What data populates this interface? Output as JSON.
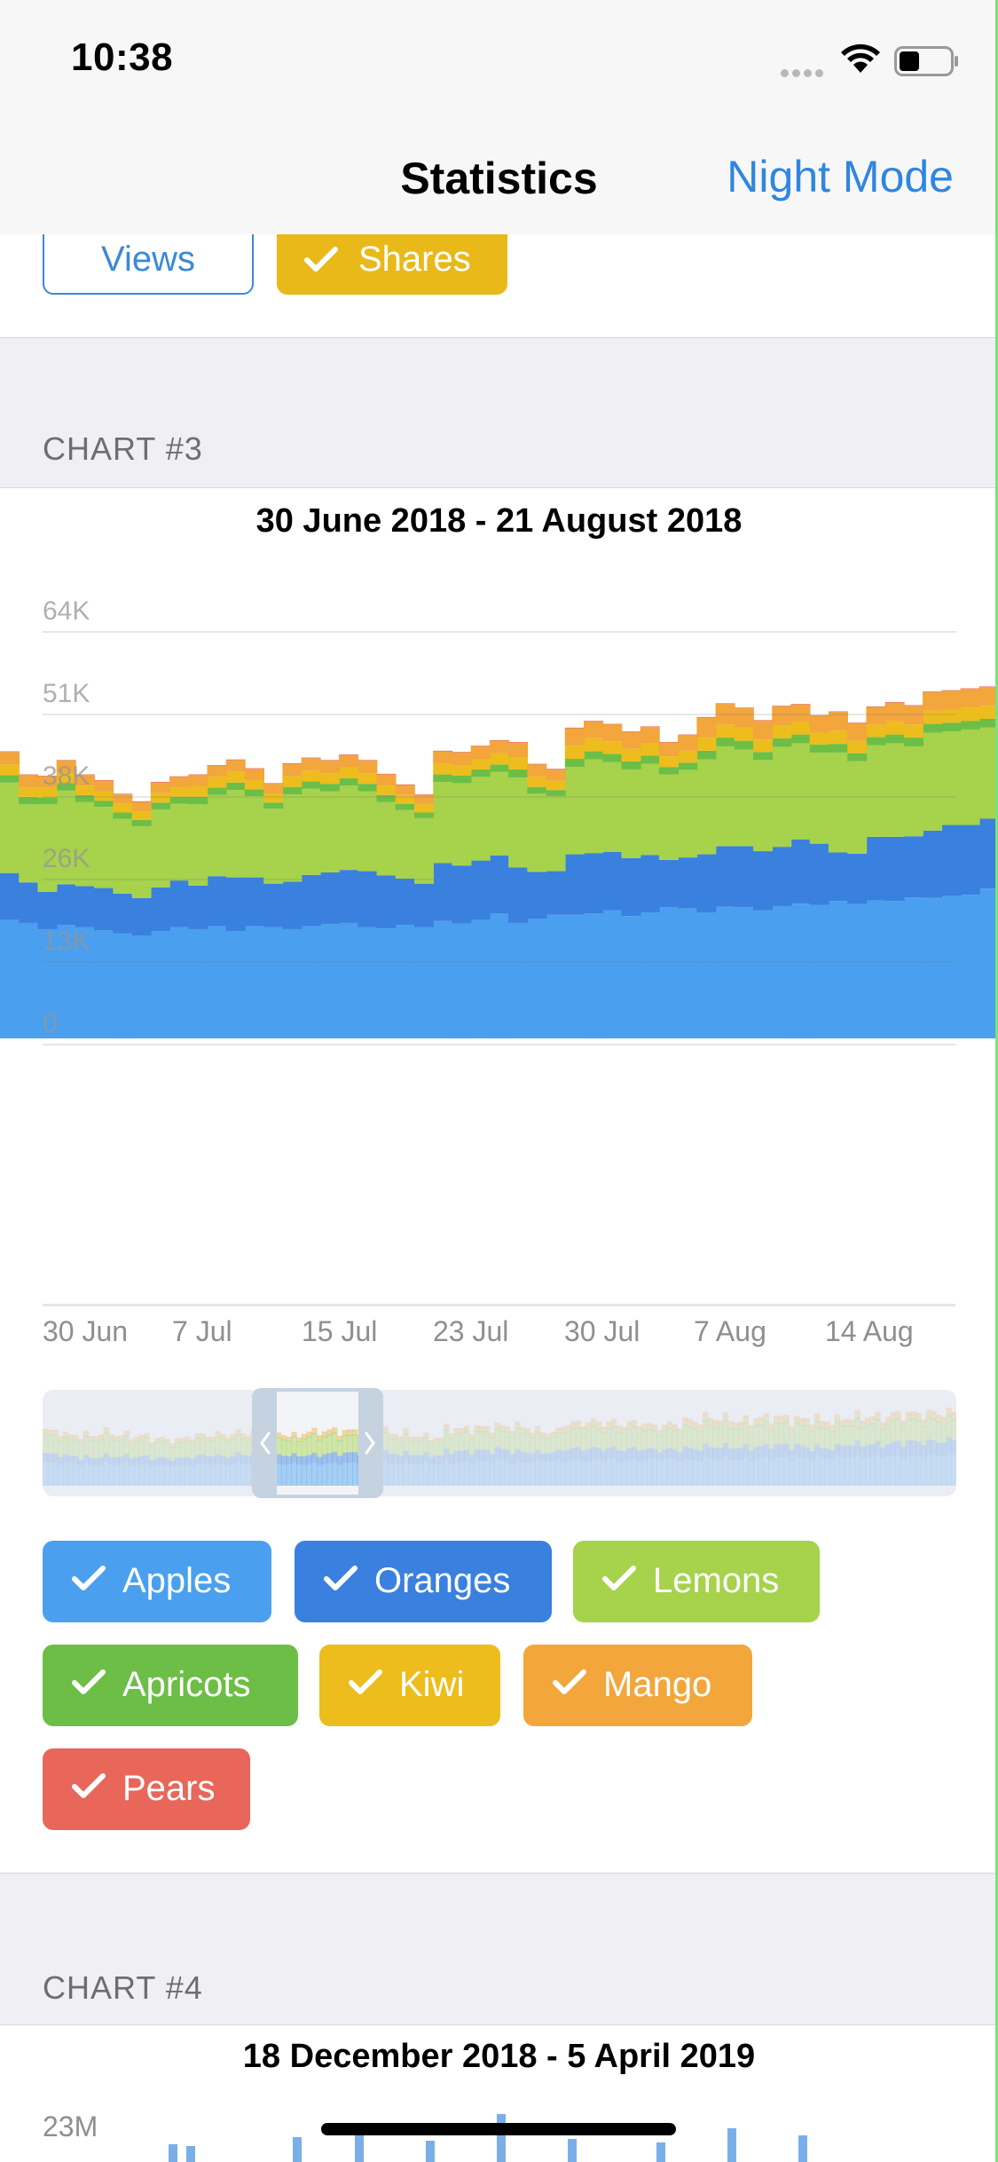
{
  "status": {
    "time": "10:38"
  },
  "nav": {
    "title": "Statistics",
    "action": "Night Mode"
  },
  "top_buttons": [
    {
      "label": "Views",
      "checked": false
    },
    {
      "label": "Shares",
      "checked": true,
      "color": "#e9b91a"
    }
  ],
  "chart3": {
    "section_label": "CHART #3",
    "range": "30 June 2018 - 21 August 2018",
    "yticks": [
      "64K",
      "51K",
      "38K",
      "26K",
      "13K",
      "0"
    ],
    "xticks": [
      "30 Jun",
      "7 Jul",
      "15 Jul",
      "23 Jul",
      "30 Jul",
      "7 Aug",
      "14 Aug"
    ],
    "chips": [
      {
        "label": "Apples",
        "color": "#4aa0ee"
      },
      {
        "label": "Oranges",
        "color": "#3a80de"
      },
      {
        "label": "Lemons",
        "color": "#a6d24c"
      },
      {
        "label": "Apricots",
        "color": "#6dbe46"
      },
      {
        "label": "Kiwi",
        "color": "#ecbd1c"
      },
      {
        "label": "Mango",
        "color": "#f2a63c"
      },
      {
        "label": "Pears",
        "color": "#e8675a"
      }
    ]
  },
  "chart_data": {
    "type": "area",
    "stacked": true,
    "title": "30 June 2018 - 21 August 2018",
    "x": [
      "2018-06-30",
      "2018-07-01",
      "2018-07-02",
      "2018-07-03",
      "2018-07-04",
      "2018-07-05",
      "2018-07-06",
      "2018-07-07",
      "2018-07-08",
      "2018-07-09",
      "2018-07-10",
      "2018-07-11",
      "2018-07-12",
      "2018-07-13",
      "2018-07-14",
      "2018-07-15",
      "2018-07-16",
      "2018-07-17",
      "2018-07-18",
      "2018-07-19",
      "2018-07-20",
      "2018-07-21",
      "2018-07-22",
      "2018-07-23",
      "2018-07-24",
      "2018-07-25",
      "2018-07-26",
      "2018-07-27",
      "2018-07-28",
      "2018-07-29",
      "2018-07-30",
      "2018-07-31",
      "2018-08-01",
      "2018-08-02",
      "2018-08-03",
      "2018-08-04",
      "2018-08-05",
      "2018-08-06",
      "2018-08-07",
      "2018-08-08",
      "2018-08-09",
      "2018-08-10",
      "2018-08-11",
      "2018-08-12",
      "2018-08-13",
      "2018-08-14",
      "2018-08-15",
      "2018-08-16",
      "2018-08-17",
      "2018-08-18",
      "2018-08-19",
      "2018-08-20",
      "2018-08-21"
    ],
    "series": [
      {
        "name": "Apples",
        "color": "#4aa0ee",
        "values": [
          19000,
          18500,
          17500,
          18200,
          17800,
          17300,
          16800,
          16500,
          17200,
          17800,
          17500,
          18000,
          17200,
          18000,
          17800,
          17500,
          18000,
          18300,
          18500,
          17800,
          17600,
          18200,
          17800,
          18800,
          18400,
          19000,
          20000,
          18500,
          19200,
          19800,
          19800,
          20000,
          20500,
          19600,
          20200,
          21000,
          20800,
          20200,
          21100,
          21000,
          20500,
          21200,
          21600,
          21400,
          22000,
          21500,
          22100,
          22000,
          22600,
          22500,
          22800,
          23000,
          24000
        ]
      },
      {
        "name": "Oranges",
        "color": "#3a80de",
        "values": [
          7500,
          6500,
          6000,
          6500,
          6600,
          6800,
          6400,
          6000,
          7000,
          7500,
          7000,
          8000,
          8600,
          7800,
          7000,
          7600,
          8200,
          8300,
          8500,
          9000,
          8500,
          7400,
          7000,
          9300,
          9300,
          9500,
          9300,
          8900,
          7500,
          7000,
          9700,
          9700,
          9400,
          9300,
          9200,
          7600,
          8200,
          9300,
          9700,
          9800,
          9500,
          9500,
          10300,
          9800,
          7800,
          8100,
          10200,
          10300,
          9800,
          10800,
          11400,
          11200,
          11200
        ]
      },
      {
        "name": "Lemons",
        "color": "#a6d24c",
        "values": [
          14500,
          12500,
          14000,
          15000,
          13500,
          13000,
          12000,
          11500,
          12500,
          12300,
          13000,
          13000,
          14000,
          13000,
          12000,
          14000,
          13800,
          13000,
          13500,
          12800,
          11800,
          11000,
          10500,
          13000,
          13200,
          13400,
          13400,
          14400,
          12500,
          12000,
          14000,
          15000,
          14400,
          14200,
          14600,
          13700,
          14000,
          15200,
          16000,
          15500,
          14600,
          16000,
          15400,
          14600,
          16000,
          14800,
          14700,
          15000,
          14400,
          15700,
          15000,
          15300,
          14600
        ]
      },
      {
        "name": "Apricots",
        "color": "#6dbe46",
        "values": [
          1200,
          1200,
          1100,
          1200,
          1100,
          1000,
          1000,
          1000,
          1100,
          1100,
          1200,
          1200,
          1200,
          1100,
          1000,
          1200,
          1200,
          1200,
          1200,
          1200,
          1100,
          1000,
          900,
          1200,
          1200,
          1200,
          1200,
          1300,
          1100,
          1000,
          1300,
          1300,
          1300,
          1300,
          1300,
          1200,
          1200,
          1400,
          1400,
          1400,
          1300,
          1400,
          1400,
          1300,
          1400,
          1300,
          1300,
          1400,
          1400,
          1400,
          1400,
          1400,
          1400
        ]
      },
      {
        "name": "Kiwi",
        "color": "#ecbd1c",
        "values": [
          1700,
          1500,
          1600,
          1700,
          1500,
          1500,
          1400,
          1400,
          1500,
          1500,
          1700,
          1700,
          1700,
          1500,
          1400,
          1700,
          1700,
          1700,
          1700,
          1700,
          1500,
          1400,
          1300,
          1700,
          1700,
          1700,
          1800,
          1900,
          1600,
          1500,
          2100,
          2100,
          2000,
          2000,
          2000,
          1700,
          1900,
          2100,
          2100,
          2100,
          2000,
          2100,
          2000,
          1900,
          2100,
          2000,
          2000,
          2100,
          2100,
          2100,
          2100,
          2100,
          2100
        ]
      },
      {
        "name": "Mango",
        "color": "#f2a63c",
        "values": [
          2000,
          2000,
          1800,
          1900,
          1700,
          1700,
          1500,
          1500,
          1700,
          1700,
          1800,
          1800,
          1900,
          1800,
          1600,
          2000,
          2000,
          2000,
          2000,
          2000,
          1800,
          1600,
          1500,
          2000,
          2000,
          2000,
          2000,
          2400,
          2000,
          1800,
          2800,
          2700,
          2700,
          2700,
          2600,
          2200,
          2500,
          3200,
          3300,
          3100,
          3000,
          3000,
          2800,
          2700,
          3000,
          2800,
          2800,
          3000,
          3000,
          3000,
          3000,
          3000,
          3000
        ]
      },
      {
        "name": "Pears",
        "color": "#e8675a",
        "values": [
          100,
          100,
          100,
          100,
          100,
          100,
          100,
          100,
          100,
          100,
          100,
          100,
          100,
          100,
          100,
          100,
          100,
          100,
          100,
          100,
          100,
          100,
          100,
          100,
          100,
          100,
          100,
          100,
          100,
          100,
          100,
          100,
          100,
          100,
          100,
          100,
          100,
          100,
          100,
          100,
          100,
          100,
          100,
          100,
          100,
          100,
          100,
          100,
          100,
          100,
          100,
          100,
          100
        ]
      }
    ],
    "ylim": [
      0,
      64000
    ],
    "grid": true,
    "legend": "bottom"
  },
  "chart4": {
    "section_label": "CHART #4",
    "range": "18 December 2018 - 5 April 2019",
    "ytick_top": "23M"
  }
}
